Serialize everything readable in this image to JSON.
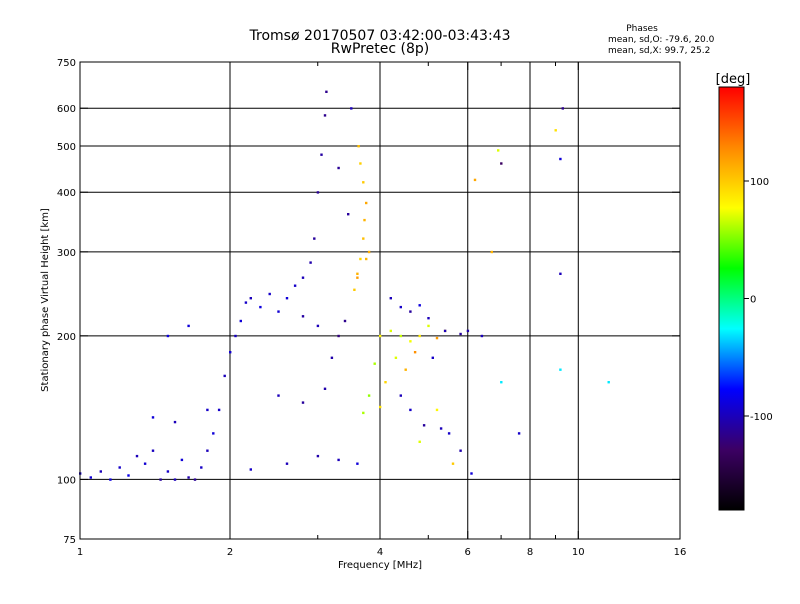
{
  "chart_data": {
    "type": "scatter",
    "title": "Tromsø 20170507 03:42:00-03:43:43",
    "subtitle": "RwPretec (8p)",
    "xlabel": "Frequency [MHz]",
    "ylabel": "Stationary phase Virtual Height [km]",
    "x_scale": "log",
    "y_scale": "log",
    "xlim": [
      1,
      16
    ],
    "ylim": [
      75,
      750
    ],
    "x_ticks": [
      1,
      2,
      4,
      6,
      8,
      10,
      16
    ],
    "x_minor_ticks": [
      3,
      5,
      7,
      9
    ],
    "y_ticks": [
      75,
      100,
      200,
      300,
      400,
      500,
      600,
      750
    ],
    "x_gridlines": [
      2,
      4,
      6,
      8,
      10
    ],
    "y_gridlines": [
      100,
      200,
      300,
      400,
      500,
      600
    ],
    "grid": true,
    "phase_stats": {
      "heading": "Phases",
      "o_line": "mean, sd,O: -79.6, 20.0",
      "x_line": "mean, sd,X:  99.7, 25.2"
    },
    "colorbar": {
      "label": "[deg]",
      "min": -180,
      "max": 180,
      "ticks": [
        100,
        0,
        -100
      ],
      "stops": [
        "#000000",
        "#3c0064",
        "#0000ff",
        "#00ffff",
        "#00ff00",
        "#ffff00",
        "#ff8800",
        "#ff0000"
      ]
    },
    "series": [
      {
        "points": [
          [
            1.0,
            103,
            -95
          ],
          [
            1.05,
            101,
            -90
          ],
          [
            1.1,
            104,
            -100
          ],
          [
            1.15,
            100,
            -88
          ],
          [
            1.2,
            106,
            -95
          ],
          [
            1.25,
            102,
            -85
          ],
          [
            1.3,
            112,
            -100
          ],
          [
            1.35,
            108,
            -92
          ],
          [
            1.4,
            115,
            -98
          ],
          [
            1.45,
            100,
            -110
          ],
          [
            1.5,
            104,
            -95
          ],
          [
            1.55,
            100,
            -100
          ],
          [
            1.6,
            110,
            -90
          ],
          [
            1.65,
            101,
            -105
          ],
          [
            1.7,
            100,
            -112
          ],
          [
            1.75,
            106,
            -96
          ],
          [
            1.8,
            115,
            -100
          ],
          [
            1.85,
            125,
            -90
          ],
          [
            1.9,
            140,
            -95
          ],
          [
            1.95,
            165,
            -100
          ],
          [
            2.0,
            185,
            -92
          ],
          [
            2.05,
            200,
            -98
          ],
          [
            2.1,
            215,
            -90
          ],
          [
            2.15,
            235,
            -95
          ],
          [
            2.2,
            240,
            -100
          ],
          [
            2.3,
            230,
            -88
          ],
          [
            2.4,
            245,
            -95
          ],
          [
            2.5,
            225,
            -92
          ],
          [
            2.6,
            240,
            -90
          ],
          [
            2.7,
            255,
            -95
          ],
          [
            2.8,
            265,
            -100
          ],
          [
            2.9,
            285,
            -105
          ],
          [
            2.95,
            320,
            -110
          ],
          [
            3.0,
            400,
            -112
          ],
          [
            3.05,
            480,
            -108
          ],
          [
            3.1,
            580,
            -115
          ],
          [
            3.12,
            650,
            -115
          ],
          [
            1.4,
            135,
            -90
          ],
          [
            1.55,
            132,
            -100
          ],
          [
            1.8,
            140,
            -95
          ],
          [
            1.5,
            200,
            -88
          ],
          [
            1.65,
            210,
            -90
          ],
          [
            2.2,
            105,
            -95
          ],
          [
            2.6,
            108,
            -100
          ],
          [
            3.0,
            112,
            -105
          ],
          [
            3.3,
            110,
            -100
          ],
          [
            3.6,
            108,
            -90
          ],
          [
            2.5,
            150,
            -100
          ],
          [
            2.8,
            145,
            -110
          ],
          [
            3.1,
            155,
            -105
          ],
          [
            3.3,
            200,
            -120
          ],
          [
            3.4,
            215,
            -115
          ],
          [
            3.45,
            360,
            -110
          ],
          [
            3.3,
            450,
            -112
          ],
          [
            3.5,
            600,
            -100
          ],
          [
            3.2,
            180,
            -105
          ],
          [
            3.0,
            210,
            -100
          ],
          [
            2.8,
            220,
            -108
          ]
        ]
      },
      {
        "points": [
          [
            3.55,
            250,
            100
          ],
          [
            3.6,
            270,
            110
          ],
          [
            3.65,
            290,
            95
          ],
          [
            3.7,
            320,
            105
          ],
          [
            3.72,
            350,
            110
          ],
          [
            3.75,
            380,
            115
          ],
          [
            3.7,
            420,
            100
          ],
          [
            3.65,
            460,
            98
          ],
          [
            3.62,
            500,
            105
          ],
          [
            3.8,
            300,
            112
          ],
          [
            3.6,
            265,
            120
          ],
          [
            3.75,
            290,
            108
          ],
          [
            4.0,
            200,
            80
          ],
          [
            4.2,
            205,
            70
          ],
          [
            4.4,
            200,
            65
          ],
          [
            4.6,
            195,
            75
          ],
          [
            4.8,
            200,
            85
          ],
          [
            5.0,
            210,
            70
          ],
          [
            5.2,
            198,
            120
          ],
          [
            5.4,
            205,
            100
          ],
          [
            3.9,
            175,
            60
          ],
          [
            4.1,
            160,
            95
          ],
          [
            3.8,
            150,
            55
          ],
          [
            4.0,
            142,
            90
          ],
          [
            3.7,
            138,
            60
          ],
          [
            4.3,
            180,
            70
          ],
          [
            4.5,
            170,
            110
          ],
          [
            4.7,
            185,
            125
          ],
          [
            6.9,
            490,
            70
          ],
          [
            6.7,
            300,
            110
          ],
          [
            9.0,
            540,
            90
          ],
          [
            6.2,
            425,
            115
          ],
          [
            5.2,
            140,
            80
          ],
          [
            4.8,
            120,
            70
          ],
          [
            5.6,
            108,
            100
          ]
        ]
      },
      {
        "points": [
          [
            4.2,
            240,
            -100
          ],
          [
            4.4,
            230,
            -95
          ],
          [
            4.6,
            225,
            -110
          ],
          [
            4.8,
            232,
            -88
          ],
          [
            5.0,
            218,
            -100
          ],
          [
            5.4,
            205,
            -100
          ],
          [
            5.8,
            202,
            -110
          ],
          [
            6.0,
            205,
            -105
          ],
          [
            5.1,
            180,
            -95
          ],
          [
            4.4,
            150,
            -100
          ],
          [
            4.6,
            140,
            -95
          ],
          [
            4.9,
            130,
            -110
          ],
          [
            5.3,
            128,
            -100
          ],
          [
            5.5,
            125,
            -95
          ],
          [
            5.8,
            115,
            -105
          ],
          [
            6.1,
            103,
            -90
          ],
          [
            6.4,
            200,
            -100
          ],
          [
            7.6,
            125,
            -95
          ],
          [
            9.3,
            600,
            -115
          ],
          [
            9.2,
            470,
            -90
          ],
          [
            7.0,
            460,
            -130
          ],
          [
            9.2,
            270,
            -100
          ],
          [
            9.2,
            170,
            -30
          ],
          [
            11.5,
            160,
            -30
          ],
          [
            7.0,
            160,
            -30
          ]
        ]
      }
    ]
  }
}
